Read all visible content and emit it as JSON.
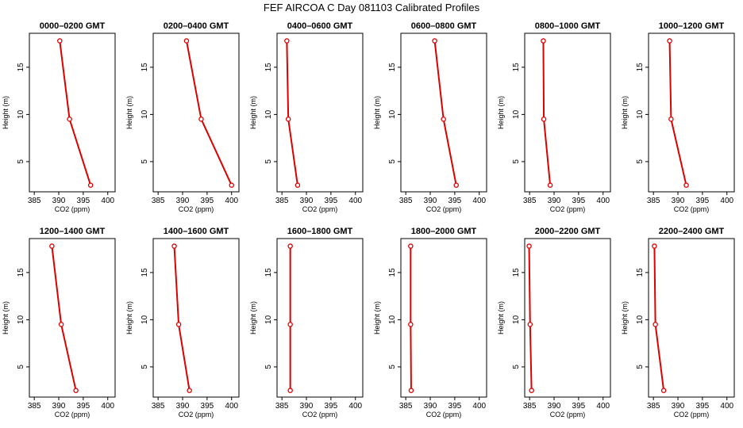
{
  "title": "FEF AIRCOA C  Day 081103  Calibrated Profiles",
  "colors": {
    "series": "#dd0000",
    "axis": "#000000"
  },
  "chart_data": {
    "type": "line",
    "xlabel": "CO2 (ppm)",
    "ylabel": "Height (m)",
    "xlim": [
      384,
      401.5
    ],
    "ylim": [
      1.8,
      18.6
    ],
    "xticks": [
      "385",
      "390",
      "395",
      "400"
    ],
    "yticks": [
      "5",
      "10",
      "15"
    ],
    "xtick_values": [
      385,
      390,
      395,
      400
    ],
    "ytick_values": [
      5,
      10,
      15
    ],
    "heights": [
      2.5,
      9.5,
      17.8
    ],
    "panels": [
      {
        "title": "0000–0200 GMT",
        "co2": [
          396.5,
          392.2,
          390.2
        ]
      },
      {
        "title": "0200–0400 GMT",
        "co2": [
          400.0,
          393.8,
          390.8
        ]
      },
      {
        "title": "0400–0600 GMT",
        "co2": [
          388.2,
          386.3,
          386.0
        ]
      },
      {
        "title": "0600–0800 GMT",
        "co2": [
          395.3,
          392.7,
          390.9
        ]
      },
      {
        "title": "0800–1000 GMT",
        "co2": [
          389.2,
          387.9,
          387.8
        ]
      },
      {
        "title": "1000–1200 GMT",
        "co2": [
          391.7,
          388.6,
          388.3
        ]
      },
      {
        "title": "1200–1400 GMT",
        "co2": [
          393.5,
          390.5,
          388.6
        ]
      },
      {
        "title": "1400–1600 GMT",
        "co2": [
          391.4,
          389.2,
          388.3
        ]
      },
      {
        "title": "1600–1800 GMT",
        "co2": [
          386.7,
          386.7,
          386.7
        ]
      },
      {
        "title": "1800–2000 GMT",
        "co2": [
          386.1,
          386.0,
          386.0
        ]
      },
      {
        "title": "2000–2200 GMT",
        "co2": [
          385.4,
          385.1,
          384.9
        ]
      },
      {
        "title": "2200–2400 GMT",
        "co2": [
          387.1,
          385.4,
          385.2
        ]
      }
    ]
  }
}
